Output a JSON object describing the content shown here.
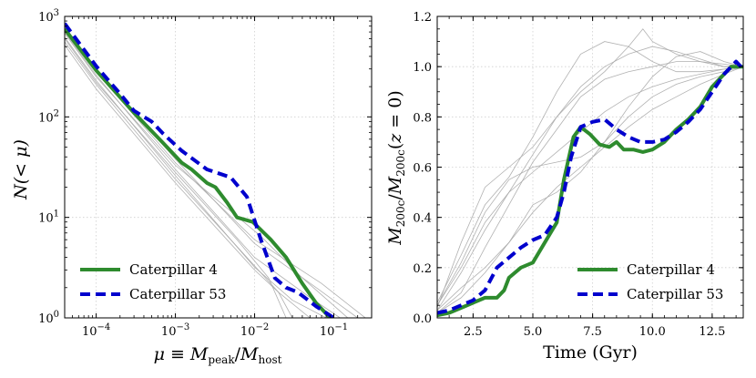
{
  "chart_data": [
    {
      "type": "line",
      "xlabel": "μ ≡ M_peak/M_host",
      "ylabel": "N(< μ)",
      "xscale": "log",
      "yscale": "log",
      "xlim": [
        4e-05,
        0.3
      ],
      "ylim": [
        1,
        1000
      ],
      "grid": true,
      "legend_position": "bottom-left",
      "xticks": [
        {
          "value": 0.0001,
          "base": "10",
          "exp": "−4"
        },
        {
          "value": 0.001,
          "base": "10",
          "exp": "−3"
        },
        {
          "value": 0.01,
          "base": "10",
          "exp": "−2"
        },
        {
          "value": 0.1,
          "base": "10",
          "exp": "−1"
        }
      ],
      "yticks": [
        {
          "value": 1,
          "base": "10",
          "exp": "0"
        },
        {
          "value": 10,
          "base": "10",
          "exp": "1"
        },
        {
          "value": 100,
          "base": "10",
          "exp": "2"
        },
        {
          "value": 1000,
          "base": "10",
          "exp": "3"
        }
      ],
      "series": [
        {
          "name": "Caterpillar 4",
          "color": "#2e8b2e",
          "style": "solid",
          "x": [
            4e-05,
            0.0001,
            0.0003,
            0.0007,
            0.0012,
            0.0016,
            0.0025,
            0.0032,
            0.0045,
            0.006,
            0.0095,
            0.016,
            0.025,
            0.04,
            0.06,
            0.09
          ],
          "y": [
            750,
            290,
            110,
            55,
            35,
            30,
            22,
            20,
            14,
            10,
            9,
            6,
            4,
            2.2,
            1.4,
            1
          ]
        },
        {
          "name": "Caterpillar 53",
          "color": "#0000cd",
          "style": "dashed",
          "x": [
            4e-05,
            0.0001,
            0.0002,
            0.0003,
            0.0005,
            0.0007,
            0.0012,
            0.0025,
            0.005,
            0.008,
            0.012,
            0.018,
            0.025,
            0.035,
            0.06,
            0.1
          ],
          "y": [
            850,
            320,
            170,
            115,
            90,
            68,
            46,
            30,
            25,
            16,
            6,
            2.5,
            2,
            1.8,
            1.3,
            1
          ]
        },
        {
          "name": "",
          "color": "#a8a8a8",
          "style": "thin",
          "x": [
            4e-05,
            0.0001,
            0.001,
            0.01,
            0.05,
            0.12
          ],
          "y": [
            700,
            260,
            30,
            4,
            1.6,
            1
          ]
        },
        {
          "name": "",
          "color": "#a8a8a8",
          "style": "thin",
          "x": [
            4e-05,
            0.0001,
            0.001,
            0.01,
            0.03,
            0.08
          ],
          "y": [
            620,
            230,
            26,
            3.2,
            1.5,
            1
          ]
        },
        {
          "name": "",
          "color": "#a8a8a8",
          "style": "thin",
          "x": [
            4e-05,
            0.0001,
            0.001,
            0.01,
            0.06,
            0.2
          ],
          "y": [
            780,
            300,
            38,
            5.5,
            2,
            1
          ]
        },
        {
          "name": "",
          "color": "#a8a8a8",
          "style": "thin",
          "x": [
            4e-05,
            0.0001,
            0.001,
            0.008,
            0.02,
            0.05
          ],
          "y": [
            560,
            210,
            24,
            4,
            1.8,
            1
          ]
        },
        {
          "name": "",
          "color": "#a8a8a8",
          "style": "thin",
          "x": [
            4e-05,
            0.0001,
            0.001,
            0.012,
            0.04,
            0.15
          ],
          "y": [
            680,
            250,
            33,
            6.5,
            2.5,
            1
          ]
        },
        {
          "name": "",
          "color": "#a8a8a8",
          "style": "thin",
          "x": [
            4e-05,
            0.0001,
            0.001,
            0.01,
            0.02,
            0.03
          ],
          "y": [
            520,
            190,
            22,
            3,
            1.8,
            1
          ]
        },
        {
          "name": "",
          "color": "#a8a8a8",
          "style": "thin",
          "x": [
            4e-05,
            0.0001,
            0.001,
            0.01,
            0.07,
            0.25
          ],
          "y": [
            740,
            280,
            35,
            6,
            2.2,
            1
          ]
        },
        {
          "name": "",
          "color": "#a8a8a8",
          "style": "thin",
          "x": [
            4e-05,
            0.0001,
            0.001,
            0.006,
            0.015,
            0.025
          ],
          "y": [
            600,
            220,
            28,
            6,
            2.5,
            1
          ]
        }
      ]
    },
    {
      "type": "line",
      "xlabel": "Time (Gyr)",
      "ylabel": "M_200c/M_200c(z = 0)",
      "xlim": [
        1,
        13.8
      ],
      "ylim": [
        0,
        1.2
      ],
      "grid": true,
      "legend_position": "bottom-right",
      "xticks": [
        "2.5",
        "5.0",
        "7.5",
        "10.0",
        "12.5"
      ],
      "yticks": [
        "0.0",
        "0.2",
        "0.4",
        "0.6",
        "0.8",
        "1.0",
        "1.2"
      ],
      "series": [
        {
          "name": "Caterpillar 4",
          "color": "#2e8b2e",
          "style": "solid",
          "x": [
            1,
            1.5,
            2,
            2.5,
            3,
            3.5,
            3.8,
            4,
            4.5,
            5,
            5.5,
            6,
            6.3,
            6.7,
            7,
            7.4,
            7.8,
            8.2,
            8.5,
            8.8,
            9.2,
            9.6,
            10,
            10.5,
            11,
            11.5,
            12,
            12.5,
            13,
            13.3,
            13.8
          ],
          "y": [
            0.01,
            0.02,
            0.04,
            0.06,
            0.08,
            0.08,
            0.11,
            0.16,
            0.2,
            0.22,
            0.3,
            0.38,
            0.55,
            0.72,
            0.76,
            0.73,
            0.69,
            0.68,
            0.7,
            0.67,
            0.67,
            0.66,
            0.67,
            0.7,
            0.75,
            0.79,
            0.84,
            0.92,
            0.97,
            1.0,
            1.0
          ]
        },
        {
          "name": "Caterpillar 53",
          "color": "#0000cd",
          "style": "dashed",
          "x": [
            1,
            1.5,
            2,
            2.5,
            3,
            3.5,
            4,
            4.5,
            5,
            5.5,
            6,
            6.3,
            6.6,
            7,
            7.5,
            8,
            8.5,
            9,
            9.5,
            10,
            10.5,
            11,
            11.5,
            12,
            12.5,
            13,
            13.5,
            13.8
          ],
          "y": [
            0.02,
            0.03,
            0.05,
            0.07,
            0.11,
            0.2,
            0.24,
            0.28,
            0.31,
            0.33,
            0.4,
            0.5,
            0.64,
            0.76,
            0.78,
            0.79,
            0.75,
            0.72,
            0.7,
            0.7,
            0.71,
            0.74,
            0.78,
            0.83,
            0.9,
            0.97,
            1.02,
            0.99
          ]
        },
        {
          "name": "",
          "color": "#a8a8a8",
          "style": "thin",
          "x": [
            1,
            2,
            3,
            4,
            5,
            6,
            7,
            8,
            9,
            10,
            11,
            12,
            13,
            13.8
          ],
          "y": [
            0.05,
            0.2,
            0.38,
            0.5,
            0.58,
            0.66,
            0.74,
            0.82,
            0.88,
            0.92,
            0.95,
            0.97,
            0.99,
            1.0
          ]
        },
        {
          "name": "",
          "color": "#a8a8a8",
          "style": "thin",
          "x": [
            1,
            2,
            3,
            4,
            5,
            6,
            7,
            8,
            9,
            10,
            11,
            12,
            13,
            13.8
          ],
          "y": [
            0.02,
            0.1,
            0.28,
            0.45,
            0.62,
            0.75,
            0.88,
            0.95,
            0.98,
            1.0,
            1.02,
            1.02,
            1.01,
            1.0
          ]
        },
        {
          "name": "",
          "color": "#a8a8a8",
          "style": "thin",
          "x": [
            1,
            2,
            3,
            4,
            5,
            6,
            7,
            8,
            9,
            10,
            11,
            12,
            13,
            13.8
          ],
          "y": [
            0.04,
            0.3,
            0.52,
            0.6,
            0.68,
            0.8,
            0.92,
            1.0,
            1.05,
            1.08,
            1.06,
            1.03,
            1.0,
            1.0
          ]
        },
        {
          "name": "",
          "color": "#a8a8a8",
          "style": "thin",
          "x": [
            1,
            2,
            3,
            4,
            5,
            6,
            7,
            8,
            9,
            10,
            11,
            12,
            13,
            13.8
          ],
          "y": [
            0.03,
            0.12,
            0.2,
            0.3,
            0.42,
            0.52,
            0.6,
            0.68,
            0.76,
            0.83,
            0.88,
            0.93,
            0.97,
            1.0
          ]
        },
        {
          "name": "",
          "color": "#a8a8a8",
          "style": "thin",
          "x": [
            1,
            2,
            3,
            4,
            5,
            6,
            7,
            8,
            9,
            10,
            11,
            12,
            13,
            13.8
          ],
          "y": [
            0.06,
            0.25,
            0.45,
            0.56,
            0.72,
            0.9,
            1.05,
            1.1,
            1.08,
            1.02,
            0.98,
            0.98,
            0.99,
            1.0
          ]
        },
        {
          "name": "",
          "color": "#a8a8a8",
          "style": "thin",
          "x": [
            1,
            2,
            3,
            4,
            5,
            6,
            7,
            8,
            9,
            10,
            11,
            12,
            13,
            13.8
          ],
          "y": [
            0.02,
            0.08,
            0.18,
            0.3,
            0.45,
            0.5,
            0.58,
            0.7,
            0.84,
            0.96,
            1.04,
            1.06,
            1.02,
            1.0
          ]
        },
        {
          "name": "",
          "color": "#a8a8a8",
          "style": "thin",
          "x": [
            1,
            2,
            3,
            4,
            5,
            6,
            7,
            8,
            9,
            10,
            11,
            12,
            13,
            13.8
          ],
          "y": [
            0.05,
            0.22,
            0.42,
            0.55,
            0.6,
            0.62,
            0.64,
            0.7,
            0.8,
            0.88,
            0.93,
            0.96,
            0.98,
            1.0
          ]
        },
        {
          "name": "",
          "color": "#a8a8a8",
          "style": "thin",
          "x": [
            1,
            2,
            3,
            4,
            5,
            6,
            7,
            8,
            9,
            9.6,
            10,
            11,
            12,
            13,
            13.8
          ],
          "y": [
            0.03,
            0.18,
            0.35,
            0.5,
            0.65,
            0.8,
            0.9,
            0.98,
            1.08,
            1.15,
            1.1,
            1.05,
            1.02,
            1.0,
            1.0
          ]
        }
      ]
    }
  ]
}
